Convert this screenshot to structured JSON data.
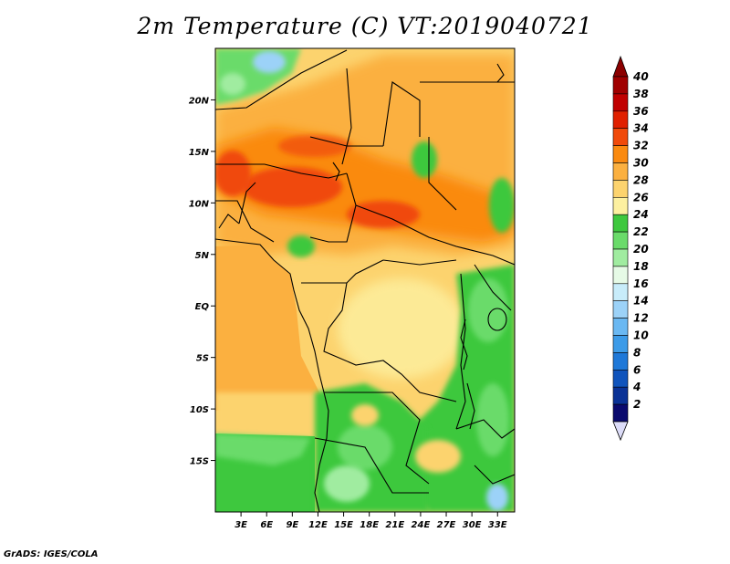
{
  "title": "2m Temperature (C) VT:2019040721",
  "credit": "GrADS: IGES/COLA",
  "map": {
    "lat_range": [
      -20,
      25
    ],
    "lon_range": [
      0,
      35
    ],
    "lat_labels": [
      {
        "lat": 20,
        "label": "20N"
      },
      {
        "lat": 15,
        "label": "15N"
      },
      {
        "lat": 10,
        "label": "10N"
      },
      {
        "lat": 5,
        "label": "5N"
      },
      {
        "lat": 0,
        "label": "EQ"
      },
      {
        "lat": -5,
        "label": "5S"
      },
      {
        "lat": -10,
        "label": "10S"
      },
      {
        "lat": -15,
        "label": "15S"
      }
    ],
    "lon_labels": [
      {
        "lon": 3,
        "label": "3E"
      },
      {
        "lon": 6,
        "label": "6E"
      },
      {
        "lon": 9,
        "label": "9E"
      },
      {
        "lon": 12,
        "label": "12E"
      },
      {
        "lon": 15,
        "label": "15E"
      },
      {
        "lon": 18,
        "label": "18E"
      },
      {
        "lon": 21,
        "label": "21E"
      },
      {
        "lon": 24,
        "label": "24E"
      },
      {
        "lon": 27,
        "label": "27E"
      },
      {
        "lon": 30,
        "label": "30E"
      },
      {
        "lon": 33,
        "label": "33E"
      }
    ]
  },
  "colorbar": {
    "levels": [
      {
        "value": "40",
        "color": "#a00000"
      },
      {
        "value": "38",
        "color": "#c00000"
      },
      {
        "value": "36",
        "color": "#e02000"
      },
      {
        "value": "34",
        "color": "#f04a0a"
      },
      {
        "value": "32",
        "color": "#fa8a10"
      },
      {
        "value": "30",
        "color": "#fbb040"
      },
      {
        "value": "28",
        "color": "#fcd36e"
      },
      {
        "value": "26",
        "color": "#fdf0a0"
      },
      {
        "value": "24",
        "color": "#3ec83e"
      },
      {
        "value": "22",
        "color": "#6adb6a"
      },
      {
        "value": "20",
        "color": "#a0eca0"
      },
      {
        "value": "18",
        "color": "#e6fae6"
      },
      {
        "value": "16",
        "color": "#c8ecfa"
      },
      {
        "value": "14",
        "color": "#9cd2f8"
      },
      {
        "value": "12",
        "color": "#6ab8f2"
      },
      {
        "value": "10",
        "color": "#3c9be8"
      },
      {
        "value": "8",
        "color": "#1e78d8"
      },
      {
        "value": "6",
        "color": "#1054bc"
      },
      {
        "value": "4",
        "color": "#0a3296"
      },
      {
        "value": "2",
        "color": "#0a0a6e"
      }
    ],
    "top_arrow_color": "#8b0000",
    "bottom_arrow_color": "#dcdcf8"
  }
}
